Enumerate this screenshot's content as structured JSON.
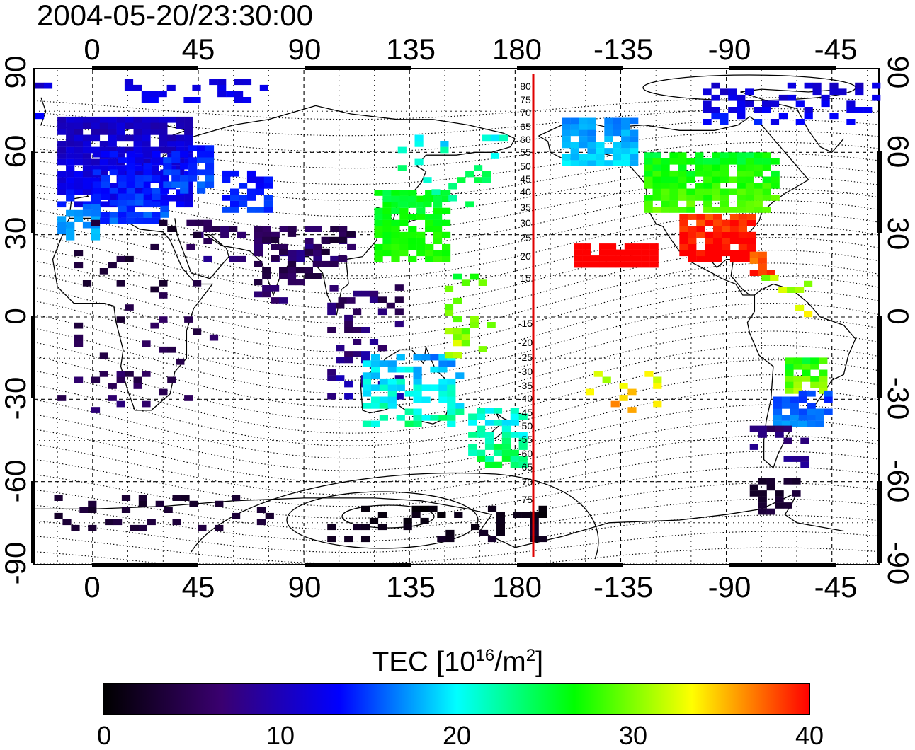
{
  "header": {
    "timestamp": "2004-05-20/23:30:00"
  },
  "map": {
    "lon_ticks": [
      "0",
      "45",
      "90",
      "135",
      "180",
      "-135",
      "-90",
      "-45"
    ],
    "lat_ticks": [
      "90",
      "60",
      "30",
      "0",
      "-30",
      "-60",
      "-90"
    ],
    "meridian_line_color": "#e00000",
    "mlat_labels": [
      "80",
      "75",
      "70",
      "65",
      "60",
      "55",
      "50",
      "45",
      "40",
      "35",
      "30",
      "25",
      "20",
      "15",
      "-15",
      "-20",
      "-25",
      "-30",
      "-35",
      "-40",
      "-45",
      "-50",
      "-55",
      "-60",
      "-65",
      "-70",
      "-75"
    ]
  },
  "colorbar": {
    "title_main": "TEC  [10",
    "title_exp": "16",
    "title_unit": "/m",
    "title_exp2": "2",
    "title_close": "]",
    "ticks": [
      "0",
      "10",
      "20",
      "30",
      "40"
    ],
    "range": [
      0,
      40
    ],
    "colors": [
      "#000000",
      "#3a0070",
      "#0000ff",
      "#00ffff",
      "#00ff00",
      "#ffff00",
      "#ff0000"
    ]
  }
}
